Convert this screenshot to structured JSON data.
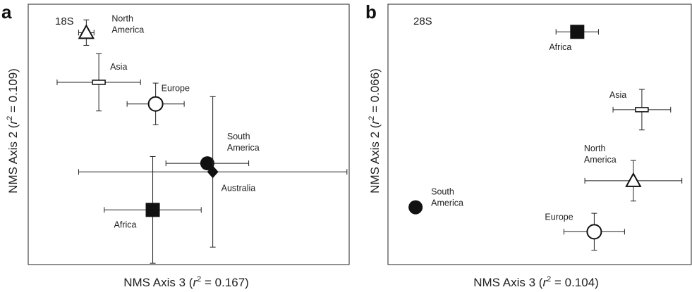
{
  "chart_data": [
    {
      "panel": "a",
      "type": "scatter",
      "gene": "18S",
      "xlabel": "NMS Axis 3 (r² = 0.167)",
      "ylabel": "NMS Axis 2 (r² = 0.109)",
      "xlabel_parts": [
        "NMS Axis 3 (",
        "r",
        "2",
        " = 0.167)"
      ],
      "ylabel_parts": [
        "NMS Axis 2 (",
        "r",
        "2",
        " = 0.109)"
      ],
      "xlim": [
        0,
        100
      ],
      "ylim": [
        0,
        100
      ],
      "grid": false,
      "points": [
        {
          "name": "North America",
          "label_lines": [
            "North",
            "America"
          ],
          "marker": "triangle-open",
          "x": 18.1,
          "y": 89.1,
          "xerr": 2.4,
          "yerr": 4.9
        },
        {
          "name": "Asia",
          "label_lines": [
            "Asia"
          ],
          "marker": "bar-open",
          "x": 22.0,
          "y": 70.0,
          "xerr": 13.0,
          "yerr": 11.0
        },
        {
          "name": "Europe",
          "label_lines": [
            "Europe"
          ],
          "marker": "circle-open",
          "x": 39.7,
          "y": 61.7,
          "xerr": 8.9,
          "yerr": 8.0
        },
        {
          "name": "South America",
          "label_lines": [
            "South",
            "America"
          ],
          "marker": "circle-filled",
          "x": 55.8,
          "y": 38.9,
          "xerr": 12.9,
          "yerr": 0
        },
        {
          "name": "Australia",
          "label_lines": [
            "Australia"
          ],
          "marker": "diamond-filled",
          "x": 57.5,
          "y": 35.6,
          "xerr": 41.8,
          "yerr": 28.9
        },
        {
          "name": "Africa",
          "label_lines": [
            "Africa"
          ],
          "marker": "square-filled",
          "x": 38.8,
          "y": 21.0,
          "xerr": 15.1,
          "yerr": 20.5
        }
      ]
    },
    {
      "panel": "b",
      "type": "scatter",
      "gene": "28S",
      "xlabel": "NMS Axis 3 (r² = 0.104)",
      "ylabel": "NMS Axis 2 (r² = 0.066)",
      "xlabel_parts": [
        "NMS Axis 3 (",
        "r",
        "2",
        " = 0.104)"
      ],
      "ylabel_parts": [
        "NMS Axis 2 (",
        "r",
        "2",
        " = 0.066)"
      ],
      "xlim": [
        0,
        100
      ],
      "ylim": [
        0,
        100
      ],
      "grid": false,
      "points": [
        {
          "name": "Africa",
          "label_lines": [
            "Africa"
          ],
          "marker": "square-filled",
          "x": 62.4,
          "y": 89.4,
          "xerr": 7.0,
          "yerr": 0
        },
        {
          "name": "Asia",
          "label_lines": [
            "Asia"
          ],
          "marker": "bar-open",
          "x": 83.7,
          "y": 59.5,
          "xerr": 9.5,
          "yerr": 7.8
        },
        {
          "name": "North America",
          "label_lines": [
            "North",
            "America"
          ],
          "marker": "triangle-open",
          "x": 80.9,
          "y": 32.2,
          "xerr": 16.0,
          "yerr": 7.8
        },
        {
          "name": "South America",
          "label_lines": [
            "South",
            "America"
          ],
          "marker": "circle-filled",
          "x": 9.1,
          "y": 22.0,
          "xerr": 0,
          "yerr": 0
        },
        {
          "name": "Europe",
          "label_lines": [
            "Europe"
          ],
          "marker": "circle-open",
          "x": 68.0,
          "y": 12.6,
          "xerr": 10.0,
          "yerr": 7.1
        }
      ]
    }
  ]
}
